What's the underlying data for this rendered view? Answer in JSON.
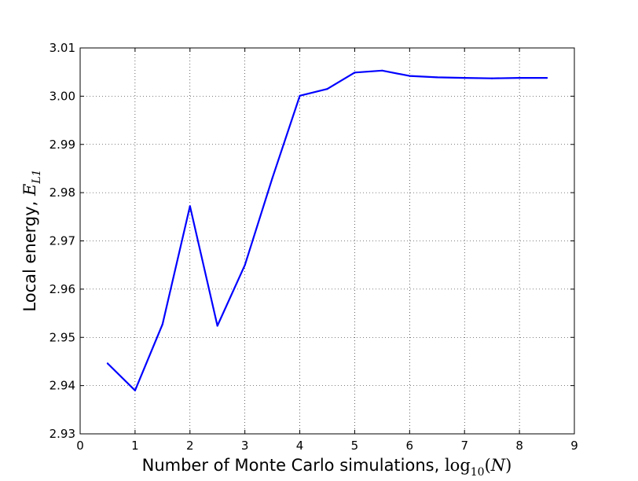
{
  "chart_data": {
    "type": "line",
    "xlabel_prefix": "Number of Monte Carlo simulations, ",
    "xlabel_math_func": "log",
    "xlabel_math_sub": "10",
    "xlabel_math_arg_open": "(",
    "xlabel_math_var": "N",
    "xlabel_math_arg_close": ")",
    "ylabel_prefix": "Local energy, ",
    "ylabel_math_var": "E",
    "ylabel_math_sub": "L1",
    "xlim": [
      0,
      9
    ],
    "ylim": [
      2.93,
      3.01
    ],
    "xticks": [
      0,
      1,
      2,
      3,
      4,
      5,
      6,
      7,
      8,
      9
    ],
    "xtick_labels": [
      "0",
      "1",
      "2",
      "3",
      "4",
      "5",
      "6",
      "7",
      "8",
      "9"
    ],
    "yticks": [
      2.93,
      2.94,
      2.95,
      2.96,
      2.97,
      2.98,
      2.99,
      3.0,
      3.01
    ],
    "ytick_labels": [
      "2.93",
      "2.94",
      "2.95",
      "2.96",
      "2.97",
      "2.98",
      "2.99",
      "3.00",
      "3.01"
    ],
    "grid": true,
    "series": [
      {
        "color": "#0000ff",
        "x": [
          0.5,
          1.0,
          1.5,
          2.0,
          2.5,
          3.0,
          3.5,
          4.0,
          4.5,
          5.0,
          5.5,
          6.0,
          6.5,
          7.0,
          7.5,
          8.0,
          8.5
        ],
        "y": [
          2.9446,
          2.939,
          2.9527,
          2.9772,
          2.9524,
          2.965,
          2.983,
          3.0001,
          3.0015,
          3.0049,
          3.0053,
          3.0042,
          3.0039,
          3.0038,
          3.0037,
          3.0038,
          3.0038
        ]
      }
    ]
  }
}
